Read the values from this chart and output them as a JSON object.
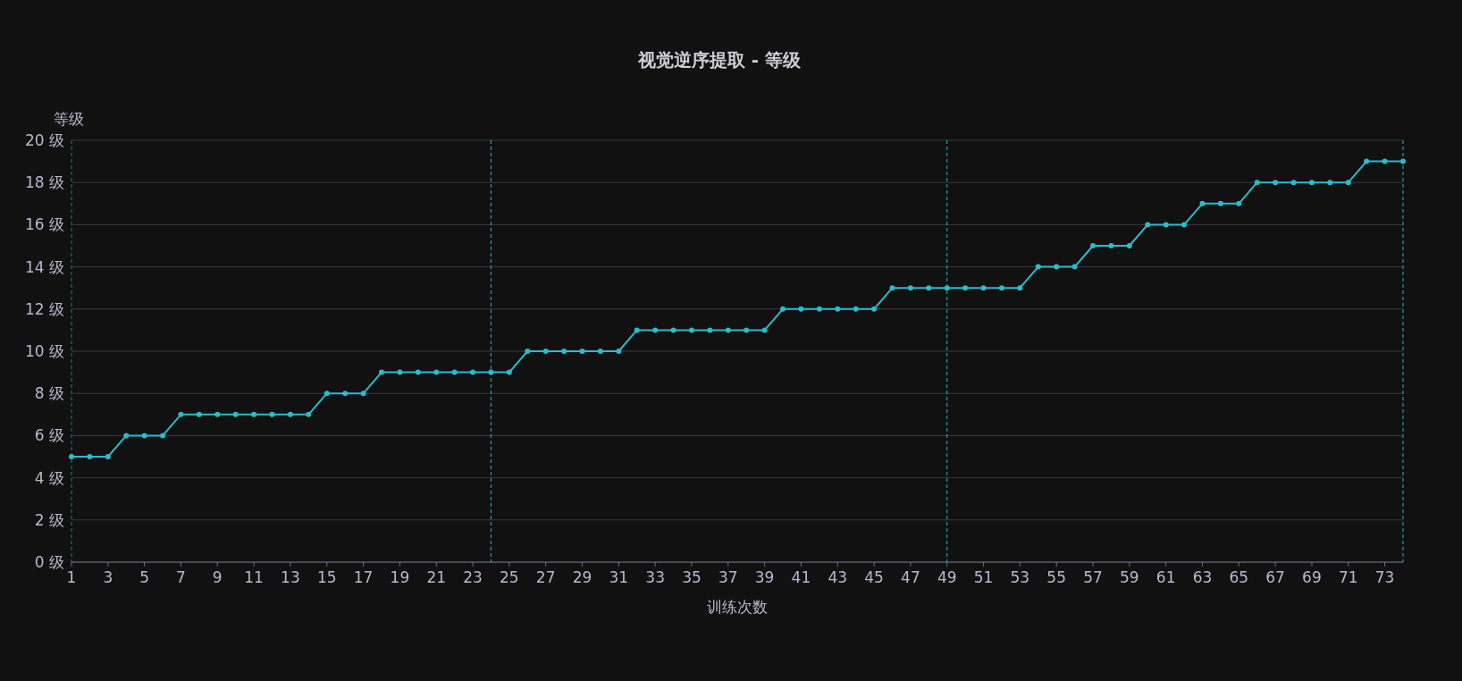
{
  "chart_data": {
    "type": "line",
    "title": "视觉逆序提取 - 等级",
    "xlabel": "训练次数",
    "ylabel": "等级",
    "x": [
      1,
      2,
      3,
      4,
      5,
      6,
      7,
      8,
      9,
      10,
      11,
      12,
      13,
      14,
      15,
      16,
      17,
      18,
      19,
      20,
      21,
      22,
      23,
      24,
      25,
      26,
      27,
      28,
      29,
      30,
      31,
      32,
      33,
      34,
      35,
      36,
      37,
      38,
      39,
      40,
      41,
      42,
      43,
      44,
      45,
      46,
      47,
      48,
      49,
      50,
      51,
      52,
      53,
      54,
      55,
      56,
      57,
      58,
      59,
      60,
      61,
      62,
      63,
      64,
      65,
      66,
      67,
      68,
      69,
      70,
      71,
      72,
      73,
      74
    ],
    "series": [
      {
        "color": "#2bbccb",
        "values": [
          5,
          5,
          5,
          6,
          6,
          6,
          7,
          7,
          7,
          7,
          7,
          7,
          7,
          7,
          8,
          8,
          8,
          9,
          9,
          9,
          9,
          9,
          9,
          9,
          9,
          10,
          10,
          10,
          10,
          10,
          10,
          11,
          11,
          11,
          11,
          11,
          11,
          11,
          11,
          12,
          12,
          12,
          12,
          12,
          12,
          13,
          13,
          13,
          13,
          13,
          13,
          13,
          13,
          14,
          14,
          14,
          15,
          15,
          15,
          16,
          16,
          16,
          17,
          17,
          17,
          18,
          18,
          18,
          18,
          18,
          18,
          19,
          19,
          19
        ]
      }
    ],
    "xlim": [
      1,
      74
    ],
    "xticks": [
      1,
      3,
      5,
      7,
      9,
      11,
      13,
      15,
      17,
      19,
      21,
      23,
      25,
      27,
      29,
      31,
      33,
      35,
      37,
      39,
      41,
      43,
      45,
      47,
      49,
      51,
      53,
      55,
      57,
      59,
      61,
      63,
      65,
      67,
      69,
      71,
      73
    ],
    "ylim": [
      0,
      20
    ],
    "yticks": [
      {
        "value": 0,
        "label": "0 级"
      },
      {
        "value": 2,
        "label": "2 级"
      },
      {
        "value": 4,
        "label": "4 级"
      },
      {
        "value": 6,
        "label": "6 级"
      },
      {
        "value": 8,
        "label": "8 级"
      },
      {
        "value": 10,
        "label": "10 级"
      },
      {
        "value": 12,
        "label": "12 级"
      },
      {
        "value": 14,
        "label": "14 级"
      },
      {
        "value": 16,
        "label": "16 级"
      },
      {
        "value": 18,
        "label": "18 级"
      },
      {
        "value": 20,
        "label": "20 级"
      }
    ],
    "grid": "y",
    "marker": "circle",
    "line_style": "solid",
    "ref_lines": [
      {
        "axis": "x",
        "value": 1,
        "color": "#1f7f86",
        "line_style": "dashed"
      },
      {
        "axis": "x",
        "value": 24,
        "color": "#2bb5c4",
        "line_style": "dashed"
      },
      {
        "axis": "x",
        "value": 49,
        "color": "#2bb5c4",
        "line_style": "dashed"
      },
      {
        "axis": "x",
        "value": 74,
        "color": "#2bb5c4",
        "line_style": "dashed"
      }
    ]
  }
}
